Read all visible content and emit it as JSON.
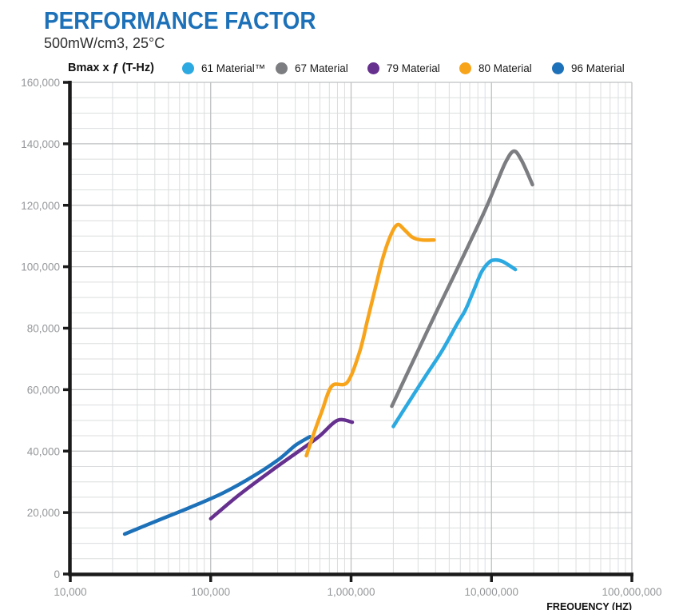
{
  "header": {
    "title": "PERFORMANCE FACTOR",
    "subtitle": "500mW/cm3, 25°C"
  },
  "colors": {
    "title_blue": "#1D71B8",
    "axis_black": "#1a1a1a",
    "grid_minor": "#DCDDDE",
    "grid_major": "#BFC0C2",
    "tick_label_gray": "#95979A"
  },
  "chart_data": {
    "type": "line",
    "title": "PERFORMANCE FACTOR",
    "subtitle": "500mW/cm3, 25°C",
    "x_axis": {
      "label": "FREQUENCY (HZ)",
      "scale": "log",
      "min": 10000,
      "max": 100000000,
      "tick_labels": [
        "10,000",
        "100,000",
        "1,000,000",
        "10,000,000",
        "100,000,000"
      ]
    },
    "y_axis": {
      "label": "Bmax x ƒ (T-Hz)",
      "scale": "linear",
      "min": 0,
      "max": 160000,
      "major_step": 20000,
      "minor_step": 5000,
      "tick_labels": [
        "0",
        "20,000",
        "40,000",
        "60,000",
        "80,000",
        "100,000",
        "120,000",
        "140,000",
        "160,000"
      ]
    },
    "grid": "on",
    "legend_position": "top",
    "series": [
      {
        "name": "61 Material™",
        "color": "#2BA9E0",
        "points": [
          [
            2000000,
            48000
          ],
          [
            2640000,
            56700
          ],
          [
            3400000,
            64500
          ],
          [
            4400000,
            72300
          ],
          [
            5700000,
            81400
          ],
          [
            6500000,
            85800
          ],
          [
            7400000,
            91800
          ],
          [
            8500000,
            98300
          ],
          [
            9600000,
            101400
          ],
          [
            10500000,
            102200
          ],
          [
            12000000,
            101700
          ],
          [
            14800000,
            99100
          ]
        ]
      },
      {
        "name": "67 Material",
        "color": "#7C7D80",
        "points": [
          [
            1950000,
            54600
          ],
          [
            3880000,
            83500
          ],
          [
            5330000,
            96500
          ],
          [
            6930000,
            107400
          ],
          [
            9000000,
            118400
          ],
          [
            10700000,
            126400
          ],
          [
            12600000,
            134000
          ],
          [
            14400000,
            137600
          ],
          [
            16300000,
            134800
          ],
          [
            19600000,
            126700
          ]
        ]
      },
      {
        "name": "79 Material",
        "color": "#66308F",
        "points": [
          [
            100000,
            18000
          ],
          [
            160000,
            25800
          ],
          [
            270000,
            33600
          ],
          [
            460000,
            41100
          ],
          [
            600000,
            45000
          ],
          [
            800000,
            50000
          ],
          [
            1020000,
            49400
          ]
        ]
      },
      {
        "name": "80 Material",
        "color": "#F8A41B",
        "points": [
          [
            480000,
            38500
          ],
          [
            550000,
            46500
          ],
          [
            620000,
            53000
          ],
          [
            730000,
            61200
          ],
          [
            940000,
            62400
          ],
          [
            1150000,
            72300
          ],
          [
            1310000,
            82700
          ],
          [
            1490000,
            93100
          ],
          [
            1700000,
            103500
          ],
          [
            1940000,
            110800
          ],
          [
            2150000,
            113700
          ],
          [
            2400000,
            112000
          ],
          [
            2750000,
            109500
          ],
          [
            3200000,
            108700
          ],
          [
            3900000,
            108700
          ]
        ]
      },
      {
        "name": "96 Material",
        "color": "#1D71B8",
        "points": [
          [
            24400,
            13000
          ],
          [
            43400,
            17700
          ],
          [
            73300,
            21900
          ],
          [
            124000,
            26500
          ],
          [
            209000,
            32300
          ],
          [
            309000,
            37500
          ],
          [
            402000,
            41900
          ],
          [
            509000,
            44700
          ]
        ]
      }
    ]
  },
  "legend_offsets": [
    0,
    117,
    232,
    347,
    463
  ]
}
